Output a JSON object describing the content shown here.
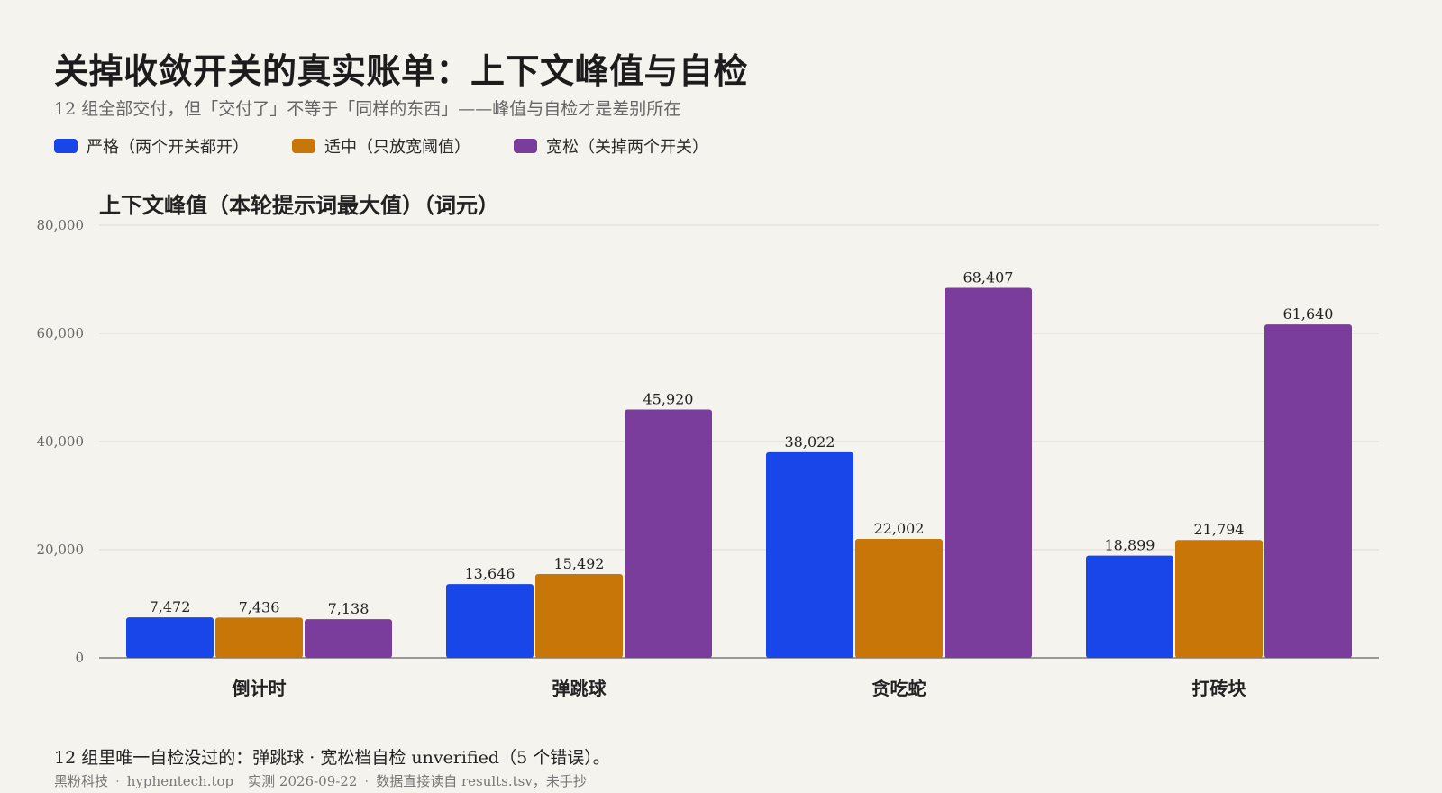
{
  "page": {
    "title": "关掉收敛开关的真实账单：上下文峰值与自检",
    "subtitle": "12 组全部交付，但「交付了」不等于「同样的东西」——峰值与自检才是差别所在",
    "footer_note": "12 组里唯一自检没过的：弹跳球 · 宽松档自检 unverified（5 个错误）。",
    "footer_meta": {
      "brand": "黑粉科技",
      "site": "hyphentech.top",
      "date": "实测 2026-09-22",
      "source": "数据直接读自 results.tsv，未手抄"
    }
  },
  "legend": [
    {
      "label": "严格（两个开关都开）",
      "color": "#1846e8"
    },
    {
      "label": "适中（只放宽阈值）",
      "color": "#c87608"
    },
    {
      "label": "宽松（关掉两个开关）",
      "color": "#7b3d9b"
    }
  ],
  "chart_data": {
    "type": "bar",
    "title": "上下文峰值（本轮提示词最大值）（词元）",
    "categories": [
      "倒计时",
      "弹跳球",
      "贪吃蛇",
      "打砖块"
    ],
    "series": [
      {
        "name": "严格（两个开关都开）",
        "color": "#1846e8",
        "values": [
          7472,
          13646,
          38022,
          18899
        ]
      },
      {
        "name": "适中（只放宽阈值）",
        "color": "#c87608",
        "values": [
          7436,
          15492,
          22002,
          21794
        ]
      },
      {
        "name": "宽松（关掉两个开关）",
        "color": "#7b3d9b",
        "values": [
          7138,
          45920,
          68407,
          61640
        ]
      }
    ],
    "ylim": [
      0,
      80000
    ],
    "yticks": [
      0,
      20000,
      40000,
      60000,
      80000
    ],
    "ytick_labels": [
      "0",
      "20,000",
      "40,000",
      "60,000",
      "80,000"
    ],
    "value_labels": [
      [
        "7,472",
        "13,646",
        "38,022",
        "18,899"
      ],
      [
        "7,436",
        "15,492",
        "22,002",
        "21,794"
      ],
      [
        "7,138",
        "45,920",
        "68,407",
        "61,640"
      ]
    ],
    "grid": true,
    "legend": "top-left"
  }
}
